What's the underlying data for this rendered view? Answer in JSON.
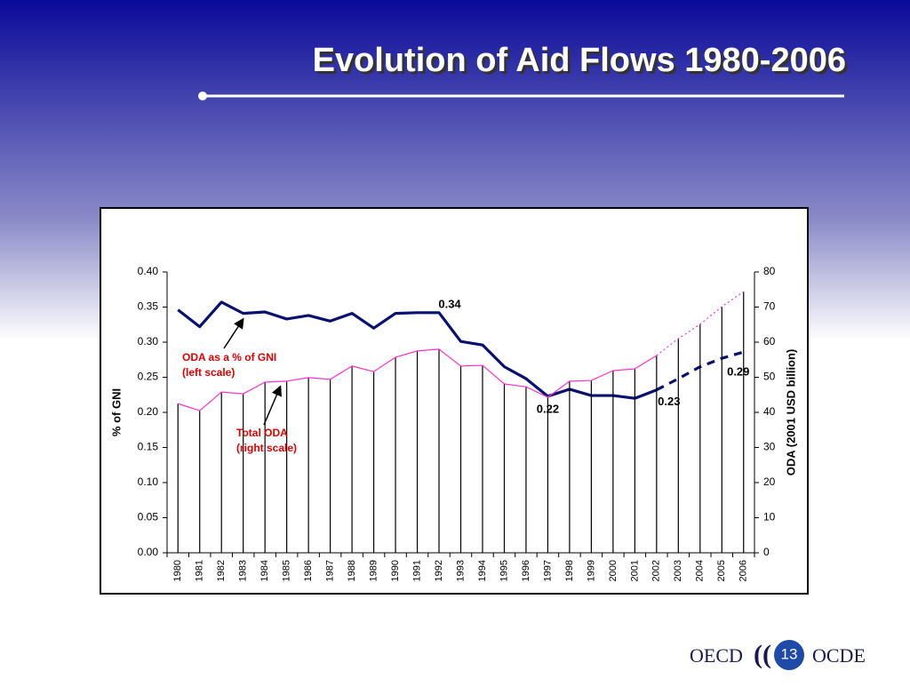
{
  "slide": {
    "title": "Evolution of Aid Flows 1980-2006",
    "footer": {
      "left": "OECD",
      "page": "13",
      "right": "OCDE"
    }
  },
  "chart_data": {
    "type": "line",
    "categories": [
      "1980",
      "1981",
      "1982",
      "1983",
      "1984",
      "1985",
      "1986",
      "1987",
      "1988",
      "1989",
      "1990",
      "1991",
      "1992",
      "1993",
      "1994",
      "1995",
      "1996",
      "1997",
      "1998",
      "1999",
      "2000",
      "2001",
      "2002",
      "2003",
      "2004",
      "2005",
      "2006"
    ],
    "series": [
      {
        "name": "ODA as a % of GNI",
        "type": "line",
        "color": "#0a1070",
        "axis": "y",
        "dashed_from": "2002",
        "values": [
          0.346,
          0.322,
          0.357,
          0.341,
          0.343,
          0.333,
          0.338,
          0.33,
          0.341,
          0.32,
          0.341,
          0.342,
          0.342,
          0.301,
          0.296,
          0.265,
          0.248,
          0.223,
          0.233,
          0.224,
          0.224,
          0.22,
          0.232,
          0.248,
          0.265,
          0.277,
          0.286
        ],
        "value_labels": [
          null,
          null,
          null,
          null,
          null,
          null,
          null,
          null,
          null,
          null,
          null,
          null,
          "0.34",
          null,
          null,
          null,
          null,
          "0.22",
          null,
          null,
          null,
          null,
          "0.23",
          null,
          null,
          null,
          "0.29"
        ]
      },
      {
        "name": "Total ODA",
        "type": "bar",
        "color": "#000000",
        "line_color": "#ff33cc",
        "axis": "y2",
        "dashed_from": "2002",
        "values": [
          42.5,
          40.5,
          45.8,
          45.3,
          48.6,
          48.9,
          49.9,
          49.4,
          53.2,
          51.6,
          55.7,
          57.5,
          58.0,
          53.2,
          53.4,
          48.1,
          47.3,
          44.3,
          48.9,
          49.1,
          51.9,
          52.4,
          56.2,
          61.0,
          65.1,
          70.1,
          74.4
        ]
      }
    ],
    "annotations": [
      {
        "lines": [
          "ODA as a % of GNI",
          "(left scale)"
        ],
        "color": "#e00000"
      },
      {
        "lines": [
          "Total ODA",
          "(right scale)"
        ],
        "color": "#e00000"
      }
    ],
    "ylabel": "% of GNI",
    "y2label": "ODA (2001 USD billion)",
    "ylim": [
      0,
      0.4
    ],
    "yticks": [
      {
        "value": 0,
        "label": "0.00"
      },
      {
        "value": 0.05,
        "label": "0.05"
      },
      {
        "value": 0.1,
        "label": "0.10"
      },
      {
        "value": 0.15,
        "label": "0.15"
      },
      {
        "value": 0.2,
        "label": "0.20"
      },
      {
        "value": 0.25,
        "label": "0.25"
      },
      {
        "value": 0.3,
        "label": "0.30"
      },
      {
        "value": 0.35,
        "label": "0.35"
      },
      {
        "value": 0.4,
        "label": "0.40"
      }
    ],
    "y2lim": [
      0,
      80
    ],
    "y2ticks": [
      0,
      10,
      20,
      30,
      40,
      50,
      60,
      70,
      80
    ]
  }
}
